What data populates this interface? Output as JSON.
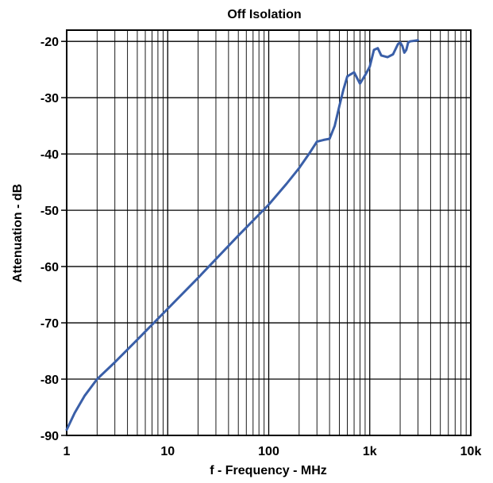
{
  "chart_data": {
    "type": "line",
    "title": "Off Isolation",
    "xlabel": "f - Frequency - MHz",
    "ylabel": "Attenuation - dB",
    "x_scale": "log",
    "xlim": [
      1,
      10000
    ],
    "ylim": [
      -90,
      -18
    ],
    "x_ticks": [
      {
        "value": 1,
        "label": "1"
      },
      {
        "value": 10,
        "label": "10"
      },
      {
        "value": 100,
        "label": "100"
      },
      {
        "value": 1000,
        "label": "1k"
      },
      {
        "value": 10000,
        "label": "10k"
      }
    ],
    "y_ticks": [
      {
        "value": -20,
        "label": "-20"
      },
      {
        "value": -30,
        "label": "-30"
      },
      {
        "value": -40,
        "label": "-40"
      },
      {
        "value": -50,
        "label": "-50"
      },
      {
        "value": -60,
        "label": "-60"
      },
      {
        "value": -70,
        "label": "-70"
      },
      {
        "value": -80,
        "label": "-80"
      },
      {
        "value": -90,
        "label": "-90"
      }
    ],
    "grid": true,
    "line_color": "#3a5fa8",
    "series": [
      {
        "x": [
          1,
          1.2,
          1.5,
          2,
          3,
          5,
          10,
          20,
          50,
          100,
          150,
          200,
          250,
          300,
          350,
          400,
          450,
          500,
          550,
          600,
          700,
          800,
          900,
          1000,
          1100,
          1200,
          1300,
          1500,
          1700,
          1900,
          2000,
          2100,
          2200,
          2300,
          2400,
          2500,
          3000
        ],
        "y": [
          -89,
          -86,
          -83,
          -80,
          -77,
          -73,
          -67.5,
          -62,
          -54.5,
          -49,
          -45.3,
          -42.5,
          -40,
          -37.8,
          -37.5,
          -37.3,
          -35,
          -31.5,
          -28.5,
          -26.2,
          -25.5,
          -27.5,
          -26,
          -24.5,
          -21.5,
          -21.2,
          -22.5,
          -22.8,
          -22.3,
          -20.5,
          -20.2,
          -20.8,
          -22,
          -21.5,
          -20.2,
          -20,
          -19.8
        ]
      }
    ]
  }
}
